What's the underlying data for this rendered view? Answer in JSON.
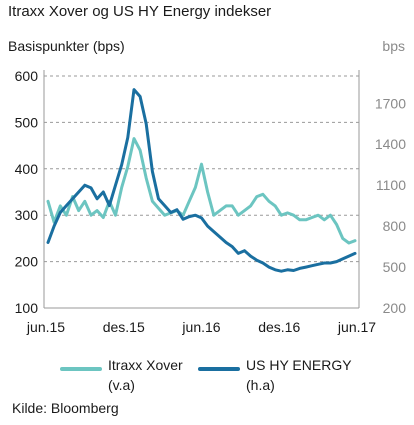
{
  "title": "Itraxx Xover og US HY Energy indekser",
  "left_axis_label": "Basispunkter (bps)",
  "right_axis_label": "bps",
  "source": "Kilde: Bloomberg",
  "legend": [
    {
      "name": "Itraxx Xover",
      "sub": "(v.a)"
    },
    {
      "name": "US HY ENERGY",
      "sub": "(h.a)"
    }
  ],
  "chart_data": {
    "type": "line",
    "xlabels": [
      "jun.15",
      "des.15",
      "jun.16",
      "des.16",
      "jun.17"
    ],
    "left_ticks": [
      "100",
      "200",
      "300",
      "400",
      "500",
      "600"
    ],
    "right_ticks": [
      "200",
      "500",
      "800",
      "1100",
      "1400",
      "1700"
    ],
    "left_ylim": [
      100,
      600
    ],
    "right_ylim": [
      200,
      1900
    ],
    "grid": "dashed horizontal",
    "legend_position": "bottom",
    "series": [
      {
        "name": "Itraxx Xover",
        "axis": "left",
        "color": "#6cc5c1",
        "x": [
          0,
          0.02,
          0.04,
          0.06,
          0.08,
          0.1,
          0.12,
          0.14,
          0.16,
          0.18,
          0.2,
          0.22,
          0.24,
          0.26,
          0.28,
          0.3,
          0.32,
          0.34,
          0.36,
          0.38,
          0.4,
          0.42,
          0.44,
          0.46,
          0.48,
          0.5,
          0.52,
          0.54,
          0.56,
          0.58,
          0.6,
          0.62,
          0.64,
          0.66,
          0.68,
          0.7,
          0.72,
          0.74,
          0.76,
          0.78,
          0.8,
          0.82,
          0.84,
          0.86,
          0.88,
          0.9,
          0.92,
          0.94,
          0.96,
          0.98,
          1.0
        ],
        "values": [
          330,
          285,
          320,
          300,
          340,
          310,
          330,
          300,
          310,
          295,
          330,
          300,
          360,
          405,
          465,
          440,
          380,
          330,
          315,
          300,
          305,
          310,
          300,
          330,
          360,
          410,
          350,
          300,
          310,
          320,
          320,
          300,
          310,
          320,
          340,
          345,
          330,
          320,
          300,
          305,
          300,
          290,
          290,
          295,
          300,
          290,
          300,
          280,
          250,
          240,
          245
        ]
      },
      {
        "name": "US HY ENERGY",
        "axis": "right",
        "color": "#1a6fa0",
        "x": [
          0,
          0.02,
          0.04,
          0.06,
          0.08,
          0.1,
          0.12,
          0.14,
          0.16,
          0.18,
          0.2,
          0.22,
          0.24,
          0.26,
          0.28,
          0.3,
          0.32,
          0.34,
          0.36,
          0.38,
          0.4,
          0.42,
          0.44,
          0.46,
          0.48,
          0.5,
          0.52,
          0.54,
          0.56,
          0.58,
          0.6,
          0.62,
          0.64,
          0.66,
          0.68,
          0.7,
          0.72,
          0.74,
          0.76,
          0.78,
          0.8,
          0.82,
          0.84,
          0.86,
          0.88,
          0.9,
          0.92,
          0.94,
          0.96,
          0.98,
          1.0
        ],
        "values": [
          680,
          800,
          900,
          950,
          1000,
          1050,
          1100,
          1080,
          1000,
          1050,
          950,
          1100,
          1250,
          1450,
          1800,
          1750,
          1550,
          1200,
          1000,
          950,
          900,
          920,
          850,
          870,
          880,
          860,
          800,
          760,
          720,
          680,
          650,
          600,
          620,
          580,
          550,
          530,
          500,
          480,
          470,
          480,
          475,
          490,
          500,
          510,
          520,
          530,
          530,
          540,
          560,
          580,
          600
        ]
      }
    ]
  }
}
